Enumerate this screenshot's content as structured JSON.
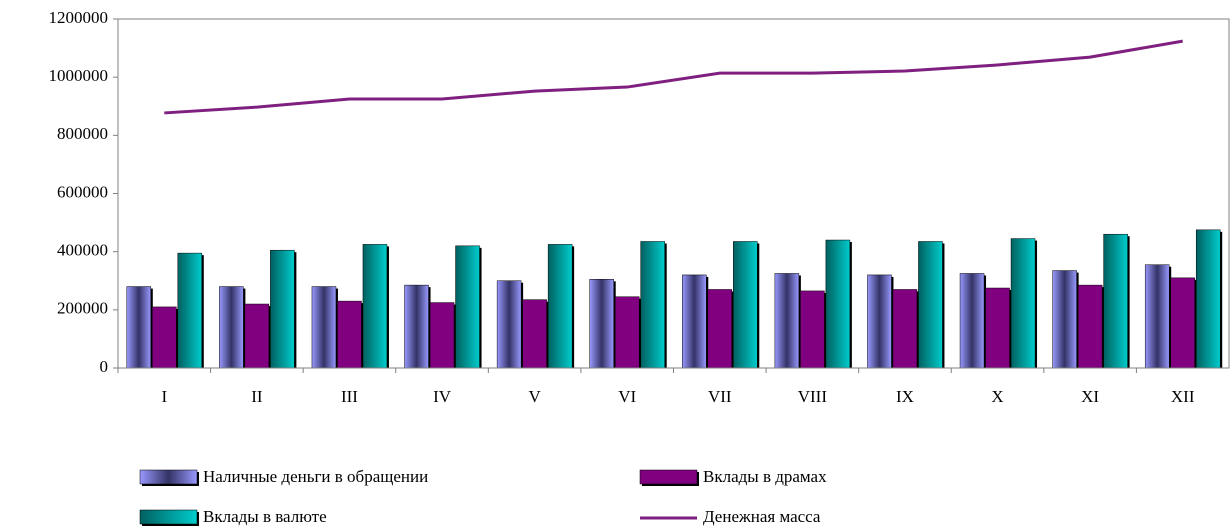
{
  "chart_data": {
    "type": "bar",
    "categories": [
      "I",
      "II",
      "III",
      "IV",
      "V",
      "VI",
      "VII",
      "VIII",
      "IX",
      "X",
      "XI",
      "XII"
    ],
    "series": [
      {
        "name": "Наличные деньги в обращении",
        "color": "#9999ff",
        "type": "bar",
        "values": [
          280000,
          280000,
          280000,
          285000,
          300000,
          305000,
          320000,
          325000,
          320000,
          325000,
          335000,
          355000
        ]
      },
      {
        "name": "Вклады в драмах",
        "color": "#800080",
        "type": "bar",
        "values": [
          210000,
          220000,
          230000,
          225000,
          235000,
          245000,
          270000,
          265000,
          270000,
          275000,
          285000,
          310000
        ]
      },
      {
        "name": "Вклады в валюте",
        "color": "#00cccc",
        "type": "bar",
        "values": [
          395000,
          405000,
          425000,
          420000,
          425000,
          435000,
          435000,
          440000,
          435000,
          445000,
          460000,
          475000
        ]
      },
      {
        "name": "Денежная масса",
        "color": "#7f1f7f",
        "type": "line",
        "values": [
          877000,
          897000,
          925000,
          925000,
          952000,
          966000,
          1014000,
          1014000,
          1021000,
          1042000,
          1069000,
          1124000
        ]
      }
    ],
    "ylim": [
      0,
      1200000
    ],
    "yticks": [
      0,
      200000,
      400000,
      600000,
      800000,
      1000000,
      1200000
    ]
  }
}
